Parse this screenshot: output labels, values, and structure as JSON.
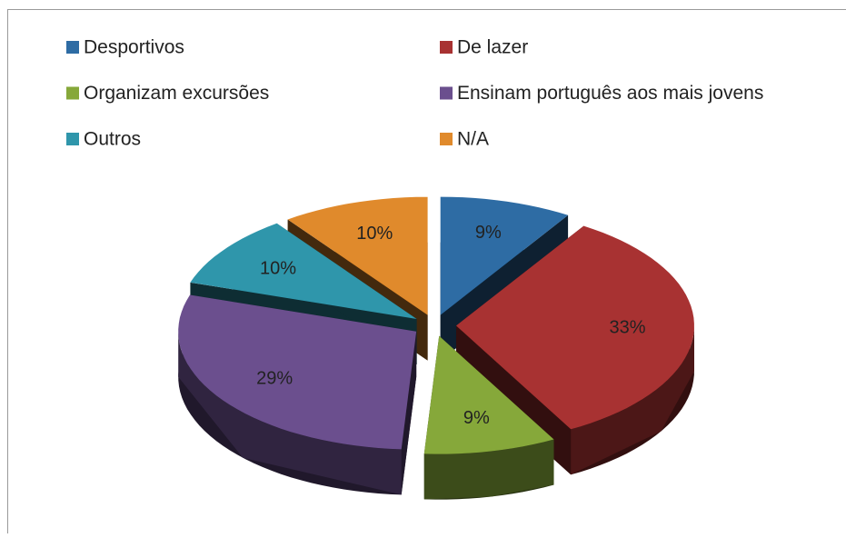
{
  "chart_data": {
    "type": "pie",
    "categories": [
      "Desportivos",
      "De lazer",
      "Organizam excursões",
      "Ensinam português aos mais jovens",
      "Outros",
      "N/A"
    ],
    "values": [
      9,
      33,
      9,
      29,
      10,
      10
    ],
    "value_labels": [
      "9%",
      "33%",
      "9%",
      "29%",
      "10%",
      "10%"
    ],
    "colors": [
      "#2e6ca4",
      "#a83232",
      "#86a83a",
      "#6b4f8e",
      "#2f96ab",
      "#e08a2c"
    ],
    "legend": "top"
  }
}
